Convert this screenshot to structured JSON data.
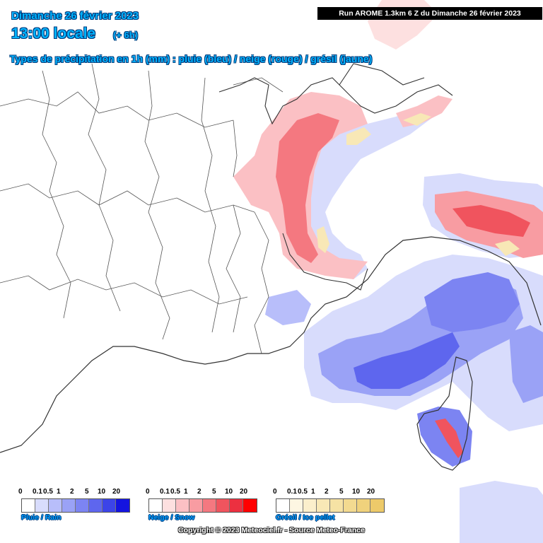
{
  "header": {
    "date": "Dimanche 26 février 2023",
    "time": "13:00 locale",
    "lead": "(+ 6h)",
    "precip_types": "Types de précipitation en 1h (mm) : pluie (bleu) / neige (rouge) / grésil (jaune)",
    "run": "Run AROME 1.3km 6 Z du Dimanche 26 février 2023"
  },
  "colors": {
    "rain": [
      "#ffffff",
      "#d8dcfc",
      "#b8befa",
      "#9aa2f6",
      "#7c84f2",
      "#5e66ee",
      "#3c44e8",
      "#1414e0"
    ],
    "snow": [
      "#ffffff",
      "#fde0e0",
      "#fbc0c4",
      "#f89ca2",
      "#f47880",
      "#f0545e",
      "#ec3040",
      "#ff0000"
    ],
    "ice": [
      "#ffffff",
      "#fdf6e2",
      "#fbefcc",
      "#f8e8b6",
      "#f6e2a4",
      "#f3da90",
      "#f0d27c",
      "#edca6a"
    ],
    "borders": "#555555",
    "coast": "#333333"
  },
  "legend": {
    "rain": {
      "label": "Pluie / Rain",
      "ticks": [
        "0",
        "0.1",
        "0.5",
        "1",
        "2",
        "5",
        "10",
        "20"
      ]
    },
    "snow": {
      "label": "Neige / Snow",
      "ticks": [
        "0",
        "0.1",
        "0.5",
        "1",
        "2",
        "5",
        "10",
        "20"
      ]
    },
    "ice": {
      "label": "Grésil / Ice pellet",
      "ticks": [
        "0",
        "0.1",
        "0.5",
        "1",
        "2",
        "5",
        "10",
        "20"
      ]
    }
  },
  "copyright": "Copyright © 2023 Meteociel.fr - Source Meteo-France"
}
